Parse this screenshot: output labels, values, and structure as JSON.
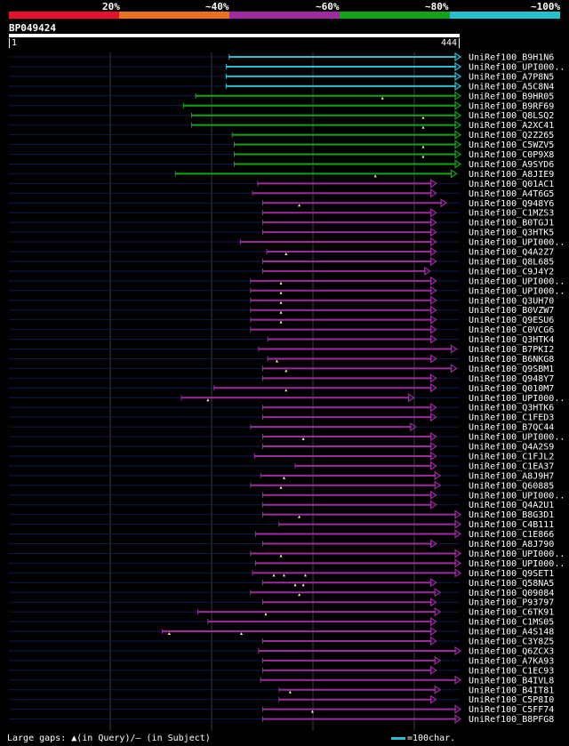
{
  "legend": {
    "labels": [
      "20%",
      "~40%",
      "~60%",
      "~80%",
      "~100%"
    ],
    "colors": [
      "#e8112d",
      "#e8711e",
      "#9f2a9f",
      "#12a316",
      "#25c1ce"
    ]
  },
  "query": {
    "name": "BP049424",
    "start": "1",
    "end": "444",
    "length": 444
  },
  "hits": [
    {
      "name": "UniRef100_B9H1N6",
      "qs": 217,
      "qe": 444,
      "tier": 4,
      "arrow": "right",
      "marks": []
    },
    {
      "name": "UniRef100_UPI000..",
      "qs": 214,
      "qe": 444,
      "tier": 4,
      "arrow": "right",
      "marks": []
    },
    {
      "name": "UniRef100_A7P8N5",
      "qs": 214,
      "qe": 444,
      "tier": 4,
      "arrow": "right",
      "marks": []
    },
    {
      "name": "UniRef100_A5C8N4",
      "qs": 214,
      "qe": 444,
      "tier": 4,
      "arrow": "right",
      "marks": []
    },
    {
      "name": "UniRef100_B9HR05",
      "qs": 184,
      "qe": 444,
      "tier": 3,
      "arrow": "right",
      "marks": [
        368
      ]
    },
    {
      "name": "UniRef100_B9RF69",
      "qs": 172,
      "qe": 444,
      "tier": 3,
      "arrow": "right",
      "marks": []
    },
    {
      "name": "UniRef100_Q8LSQ2",
      "qs": 180,
      "qe": 444,
      "tier": 3,
      "arrow": "right",
      "marks": [
        408
      ]
    },
    {
      "name": "UniRef100_A2XC41",
      "qs": 180,
      "qe": 444,
      "tier": 3,
      "arrow": "right",
      "marks": [
        408
      ]
    },
    {
      "name": "UniRef100_Q2Z265",
      "qs": 220,
      "qe": 444,
      "tier": 3,
      "arrow": "right",
      "marks": []
    },
    {
      "name": "UniRef100_C5WZV5",
      "qs": 222,
      "qe": 444,
      "tier": 3,
      "arrow": "right",
      "marks": [
        408
      ]
    },
    {
      "name": "UniRef100_C0P9X8",
      "qs": 222,
      "qe": 444,
      "tier": 3,
      "arrow": "right",
      "marks": [
        408
      ]
    },
    {
      "name": "UniRef100_A9SYD6",
      "qs": 222,
      "qe": 444,
      "tier": 3,
      "arrow": "right",
      "marks": []
    },
    {
      "name": "UniRef100_A8JIE9",
      "qs": 164,
      "qe": 440,
      "tier": 3,
      "arrow": "right",
      "marks": [
        361
      ]
    },
    {
      "name": "UniRef100_Q01AC1",
      "qs": 245,
      "qe": 420,
      "tier": 2,
      "arrow": "right",
      "marks": []
    },
    {
      "name": "UniRef100_A4T6G5",
      "qs": 240,
      "qe": 420,
      "tier": 2,
      "arrow": "right",
      "marks": []
    },
    {
      "name": "UniRef100_Q948Y6",
      "qs": 250,
      "qe": 430,
      "tier": 2,
      "arrow": "right",
      "marks": [
        286
      ]
    },
    {
      "name": "UniRef100_C1MZS3",
      "qs": 250,
      "qe": 420,
      "tier": 2,
      "arrow": "right",
      "marks": []
    },
    {
      "name": "UniRef100_B0TGJ1",
      "qs": 250,
      "qe": 420,
      "tier": 2,
      "arrow": "right",
      "marks": []
    },
    {
      "name": "UniRef100_Q3HTK5",
      "qs": 250,
      "qe": 420,
      "tier": 2,
      "arrow": "right",
      "marks": []
    },
    {
      "name": "UniRef100_UPI000..",
      "qs": 228,
      "qe": 420,
      "tier": 2,
      "arrow": "right",
      "marks": []
    },
    {
      "name": "UniRef100_Q4A2Z7",
      "qs": 254,
      "qe": 420,
      "tier": 2,
      "arrow": "right",
      "marks": [
        273
      ]
    },
    {
      "name": "UniRef100_Q8L685",
      "qs": 250,
      "qe": 420,
      "tier": 2,
      "arrow": "right",
      "marks": []
    },
    {
      "name": "UniRef100_C9J4Y2",
      "qs": 250,
      "qe": 414,
      "tier": 2,
      "arrow": "right",
      "marks": []
    },
    {
      "name": "UniRef100_UPI000..",
      "qs": 238,
      "qe": 420,
      "tier": 2,
      "arrow": "right",
      "marks": [
        268
      ]
    },
    {
      "name": "UniRef100_UPI000..",
      "qs": 238,
      "qe": 420,
      "tier": 2,
      "arrow": "right",
      "marks": [
        268
      ]
    },
    {
      "name": "UniRef100_Q3UH70",
      "qs": 238,
      "qe": 420,
      "tier": 2,
      "arrow": "right",
      "marks": [
        268
      ]
    },
    {
      "name": "UniRef100_B0VZW7",
      "qs": 238,
      "qe": 420,
      "tier": 2,
      "arrow": "right",
      "marks": [
        268
      ]
    },
    {
      "name": "UniRef100_Q9ESU6",
      "qs": 238,
      "qe": 420,
      "tier": 2,
      "arrow": "right",
      "marks": [
        268
      ]
    },
    {
      "name": "UniRef100_C0VCG6",
      "qs": 238,
      "qe": 420,
      "tier": 2,
      "arrow": "right",
      "marks": []
    },
    {
      "name": "UniRef100_Q3HTK4",
      "qs": 255,
      "qe": 420,
      "tier": 2,
      "arrow": "right",
      "marks": []
    },
    {
      "name": "UniRef100_B7PKI2",
      "qs": 246,
      "qe": 440,
      "tier": 2,
      "arrow": "right",
      "marks": []
    },
    {
      "name": "UniRef100_B6NKG8",
      "qs": 255,
      "qe": 420,
      "tier": 2,
      "arrow": "right",
      "marks": [
        264
      ]
    },
    {
      "name": "UniRef100_Q9SBM1",
      "qs": 250,
      "qe": 440,
      "tier": 2,
      "arrow": "right",
      "marks": [
        273
      ]
    },
    {
      "name": "UniRef100_Q948Y7",
      "qs": 250,
      "qe": 420,
      "tier": 2,
      "arrow": "right",
      "marks": []
    },
    {
      "name": "UniRef100_Q010M7",
      "qs": 202,
      "qe": 420,
      "tier": 2,
      "arrow": "right",
      "marks": [
        273
      ]
    },
    {
      "name": "UniRef100_UPI000..",
      "qs": 170,
      "qe": 398,
      "tier": 2,
      "arrow": "right",
      "marks": [
        196
      ]
    },
    {
      "name": "UniRef100_Q3HTK6",
      "qs": 250,
      "qe": 420,
      "tier": 2,
      "arrow": "right",
      "marks": []
    },
    {
      "name": "UniRef100_C1FED3",
      "qs": 250,
      "qe": 420,
      "tier": 2,
      "arrow": "right",
      "marks": []
    },
    {
      "name": "UniRef100_B7QC44",
      "qs": 238,
      "qe": 400,
      "tier": 2,
      "arrow": "right",
      "marks": []
    },
    {
      "name": "UniRef100_UPI000..",
      "qs": 250,
      "qe": 420,
      "tier": 2,
      "arrow": "right",
      "marks": [
        290
      ]
    },
    {
      "name": "UniRef100_Q4A2S9",
      "qs": 250,
      "qe": 420,
      "tier": 2,
      "arrow": "right",
      "marks": []
    },
    {
      "name": "UniRef100_C1FJL2",
      "qs": 242,
      "qe": 420,
      "tier": 2,
      "arrow": "right",
      "marks": []
    },
    {
      "name": "UniRef100_C1EA37",
      "qs": 282,
      "qe": 420,
      "tier": 2,
      "arrow": "right",
      "marks": []
    },
    {
      "name": "UniRef100_A8J9H7",
      "qs": 248,
      "qe": 424,
      "tier": 2,
      "arrow": "right",
      "marks": [
        271
      ]
    },
    {
      "name": "UniRef100_Q60885",
      "qs": 238,
      "qe": 424,
      "tier": 2,
      "arrow": "right",
      "marks": [
        268
      ]
    },
    {
      "name": "UniRef100_UPI000..",
      "qs": 250,
      "qe": 420,
      "tier": 2,
      "arrow": "right",
      "marks": []
    },
    {
      "name": "UniRef100_Q4A2U1",
      "qs": 250,
      "qe": 420,
      "tier": 2,
      "arrow": "right",
      "marks": []
    },
    {
      "name": "UniRef100_B8G3D1",
      "qs": 250,
      "qe": 444,
      "tier": 2,
      "arrow": "right",
      "marks": [
        286
      ]
    },
    {
      "name": "UniRef100_C4B111",
      "qs": 266,
      "qe": 444,
      "tier": 2,
      "arrow": "right",
      "marks": []
    },
    {
      "name": "UniRef100_C1E866",
      "qs": 243,
      "qe": 444,
      "tier": 2,
      "arrow": "right",
      "marks": []
    },
    {
      "name": "UniRef100_A8J790",
      "qs": 250,
      "qe": 420,
      "tier": 2,
      "arrow": "right",
      "marks": []
    },
    {
      "name": "UniRef100_UPI000..",
      "qs": 238,
      "qe": 444,
      "tier": 2,
      "arrow": "right",
      "marks": [
        268
      ]
    },
    {
      "name": "UniRef100_UPI000..",
      "qs": 243,
      "qe": 444,
      "tier": 2,
      "arrow": "right",
      "marks": []
    },
    {
      "name": "UniRef100_Q9SET1",
      "qs": 240,
      "qe": 444,
      "tier": 2,
      "arrow": "right",
      "marks": [
        261,
        271,
        292
      ]
    },
    {
      "name": "UniRef100_Q58NA5",
      "qs": 250,
      "qe": 420,
      "tier": 2,
      "arrow": "right",
      "marks": [
        282,
        290
      ]
    },
    {
      "name": "UniRef100_Q09084",
      "qs": 238,
      "qe": 424,
      "tier": 2,
      "arrow": "right",
      "marks": [
        286
      ]
    },
    {
      "name": "UniRef100_P93797",
      "qs": 250,
      "qe": 420,
      "tier": 2,
      "arrow": "right",
      "marks": []
    },
    {
      "name": "UniRef100_C6TK91",
      "qs": 186,
      "qe": 424,
      "tier": 2,
      "arrow": "right",
      "marks": [
        253
      ]
    },
    {
      "name": "UniRef100_C1MS05",
      "qs": 196,
      "qe": 420,
      "tier": 2,
      "arrow": "right",
      "marks": []
    },
    {
      "name": "UniRef100_A4S148",
      "qs": 151,
      "qe": 420,
      "tier": 2,
      "arrow": "right",
      "marks": [
        158,
        229
      ]
    },
    {
      "name": "UniRef100_C3Y8Z5",
      "qs": 250,
      "qe": 420,
      "tier": 2,
      "arrow": "right",
      "marks": []
    },
    {
      "name": "UniRef100_Q6ZCX3",
      "qs": 246,
      "qe": 444,
      "tier": 2,
      "arrow": "right",
      "marks": []
    },
    {
      "name": "UniRef100_A7KA93",
      "qs": 250,
      "qe": 424,
      "tier": 2,
      "arrow": "right",
      "marks": []
    },
    {
      "name": "UniRef100_C1EC93",
      "qs": 250,
      "qe": 420,
      "tier": 2,
      "arrow": "right",
      "marks": []
    },
    {
      "name": "UniRef100_B4IVL8",
      "qs": 248,
      "qe": 444,
      "tier": 2,
      "arrow": "right",
      "marks": []
    },
    {
      "name": "UniRef100_B4IT81",
      "qs": 266,
      "qe": 424,
      "tier": 2,
      "arrow": "right",
      "marks": [
        277
      ]
    },
    {
      "name": "UniRef100_C5P8I0",
      "qs": 266,
      "qe": 420,
      "tier": 2,
      "arrow": "right",
      "marks": []
    },
    {
      "name": "UniRef100_C5FF74",
      "qs": 250,
      "qe": 444,
      "tier": 2,
      "arrow": "right",
      "marks": [
        299
      ]
    },
    {
      "name": "UniRef100_B8PFG8",
      "qs": 250,
      "qe": 444,
      "tier": 2,
      "arrow": "right",
      "marks": []
    }
  ],
  "footer": {
    "gaps_text": "Large gaps: ▲(in Query)/– (in Subject)",
    "scale_text": "=100char."
  }
}
